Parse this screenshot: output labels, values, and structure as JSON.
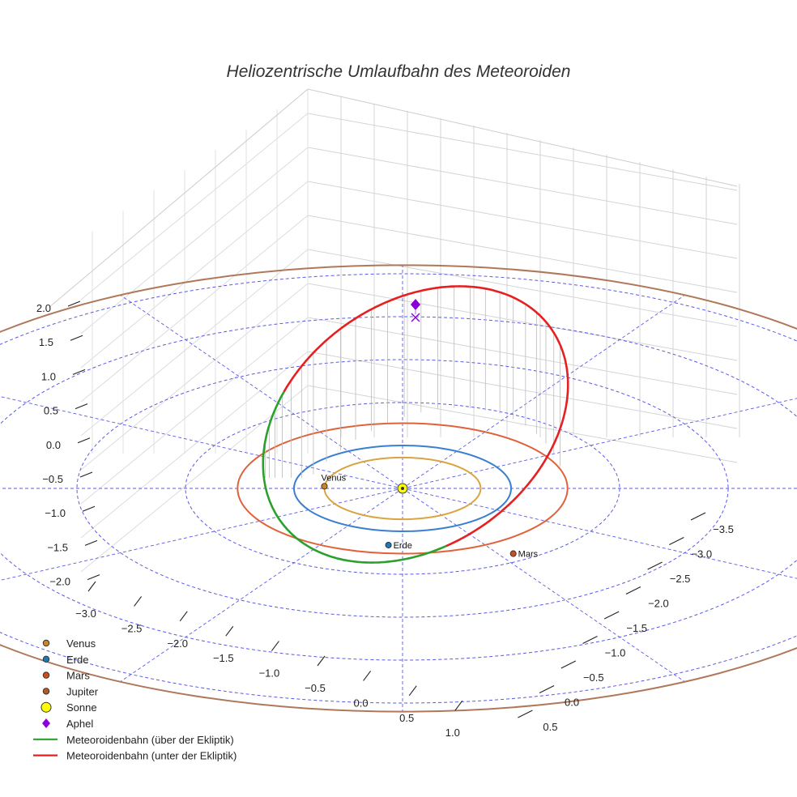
{
  "chart_data": {
    "type": "scatter",
    "projection": "3d",
    "title": "Heliozentrische Umlaufbahn des Meteoroiden",
    "z_ticks": [
      "2.0",
      "1.5",
      "1.0",
      "0.5",
      "0.0",
      "−0.5",
      "−1.0",
      "−1.5",
      "−2.0"
    ],
    "x_ticks": [
      "−3.0",
      "−2.5",
      "−2.0",
      "−1.5",
      "−1.0",
      "−0.5",
      "0.0",
      "0.5",
      "1.0"
    ],
    "y_ticks": [
      "−3.5",
      "−3.0",
      "−2.5",
      "−2.0",
      "−1.5",
      "−1.0",
      "−0.5",
      "0.0",
      "0.5"
    ],
    "ecliptic_grid_radii_au": [
      1,
      2,
      3,
      4,
      5
    ],
    "planets": [
      {
        "name": "Venus",
        "label": "Venus",
        "orbit_radius_au": 0.72,
        "color": "#d9a441",
        "dot_color": "#c8862a"
      },
      {
        "name": "Erde",
        "label": "Erde",
        "orbit_radius_au": 1.0,
        "color": "#3a7fd0",
        "dot_color": "#1f77b4"
      },
      {
        "name": "Mars",
        "label": "Mars",
        "orbit_radius_au": 1.52,
        "color": "#e0623a",
        "dot_color": "#c8501e"
      },
      {
        "name": "Jupiter",
        "label": "",
        "orbit_radius_au": 5.2,
        "color": "#b0785a",
        "dot_color": "#b05a2a"
      }
    ],
    "sun": {
      "name": "Sonne",
      "color": "#ffff00"
    },
    "aphel": {
      "name": "Aphel",
      "color": "#8b00d8"
    },
    "meteoroid_orbit": {
      "above": {
        "name": "Meteoroidenbahn (über der Ekliptik)",
        "color": "#2ca02c"
      },
      "below": {
        "name": "Meteoroidenbahn (unter der Ekliptik)",
        "color": "#e62020"
      }
    },
    "legend": [
      {
        "label": "Venus",
        "kind": "dot",
        "color": "#c8862a"
      },
      {
        "label": "Erde",
        "kind": "dot",
        "color": "#1f77b4"
      },
      {
        "label": "Mars",
        "kind": "dot",
        "color": "#c8501e"
      },
      {
        "label": "Jupiter",
        "kind": "dot",
        "color": "#b05a2a"
      },
      {
        "label": "Sonne",
        "kind": "bigdot",
        "color": "#ffff00"
      },
      {
        "label": "Aphel",
        "kind": "diamond",
        "color": "#8b00d8"
      },
      {
        "label": "Meteoroidenbahn (über der Ekliptik)",
        "kind": "line",
        "color": "#2ca02c"
      },
      {
        "label": "Meteoroidenbahn (unter der Ekliptik)",
        "kind": "line",
        "color": "#e62020"
      }
    ],
    "legend_position": "bottom-left"
  }
}
